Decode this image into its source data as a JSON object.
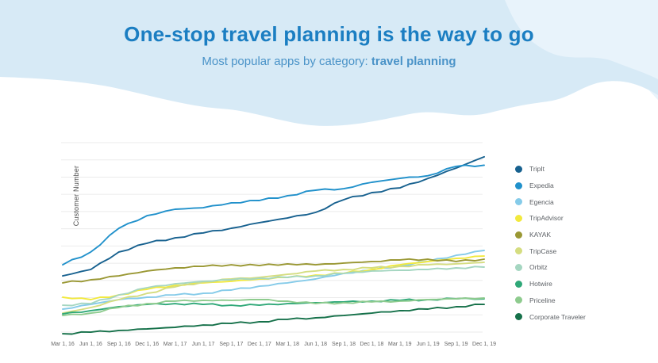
{
  "header": {
    "title": "One-stop travel planning is the way to go",
    "subtitle_prefix": "Most popular apps by category: ",
    "subtitle_highlight": "travel planning"
  },
  "colors": {
    "title_blue": "#1b7ec2",
    "subtitle_blue": "#4a93c8",
    "wave_main": "#d7eaf6",
    "wave_light": "#e8f3fb",
    "gridline": "#ebebeb",
    "axis_text": "#666666"
  },
  "chart_data": {
    "type": "line",
    "title": "",
    "xlabel": "",
    "ylabel": "Customer Number",
    "ylim": [
      0,
      100
    ],
    "y_tick_labels_shown": false,
    "grid": "horizontal",
    "legend_position": "right",
    "x_tick_labels": [
      "Mar 1, 16",
      "Jun 1, 16",
      "Sep 1, 16",
      "Dec 1, 16",
      "Mar 1, 17",
      "Jun 1, 17",
      "Sep 1, 17",
      "Dec 1, 17",
      "Mar 1, 18",
      "Jun 1, 18",
      "Sep 1, 18",
      "Dec 1, 18",
      "Mar 1, 19",
      "Jun 1, 19",
      "Sep 1, 19",
      "Dec 1, 19"
    ],
    "series": [
      {
        "name": "TripIt",
        "color": "#17618f",
        "values": [
          31.4,
          34.7,
          43.7,
          48.2,
          51.0,
          53.5,
          55.9,
          58.8,
          61.2,
          64.1,
          70.6,
          74.3,
          76.7,
          81.6,
          86.9,
          92.7
        ]
      },
      {
        "name": "Expedia",
        "color": "#2191cb",
        "values": [
          37.1,
          43.7,
          55.9,
          62.4,
          65.7,
          66.5,
          69.0,
          70.2,
          72.7,
          75.5,
          76.3,
          79.6,
          81.6,
          83.0,
          87.8,
          88.4
        ]
      },
      {
        "name": "Egencia",
        "color": "#85cbe9",
        "values": [
          14.3,
          16.7,
          19.2,
          20.4,
          21.6,
          22.4,
          24.1,
          26.1,
          27.8,
          29.8,
          32.7,
          34.3,
          36.7,
          38.8,
          42.0,
          44.5
        ]
      },
      {
        "name": "TripAdvisor",
        "color": "#f2e93d",
        "values": [
          20.4,
          19.2,
          21.6,
          24.5,
          26.5,
          27.8,
          28.6,
          29.8,
          30.6,
          31.8,
          32.7,
          34.7,
          37.1,
          38.8,
          40.4,
          41.6
        ]
      },
      {
        "name": "KAYAK",
        "color": "#9a9834",
        "values": [
          27.8,
          29.4,
          31.4,
          33.9,
          35.5,
          36.3,
          37.1,
          36.7,
          37.6,
          37.1,
          38.0,
          38.8,
          39.6,
          40.0,
          38.8,
          40.0
        ]
      },
      {
        "name": "TripCase",
        "color": "#d5dd80",
        "values": [
          12.2,
          15.1,
          19.2,
          22.4,
          25.7,
          28.2,
          29.8,
          30.6,
          32.2,
          33.9,
          34.7,
          35.5,
          36.3,
          37.1,
          37.6,
          38.4
        ]
      },
      {
        "name": "Orbitz",
        "color": "#a5d6c1",
        "values": [
          16.3,
          17.1,
          21.6,
          25.3,
          27.3,
          28.6,
          29.4,
          30.2,
          30.6,
          31.4,
          32.7,
          33.9,
          34.3,
          34.7,
          35.5,
          35.9
        ]
      },
      {
        "name": "Hotwire",
        "color": "#2fa878",
        "values": [
          11.8,
          13.5,
          15.5,
          16.7,
          17.1,
          16.7,
          16.3,
          16.3,
          17.1,
          17.6,
          18.0,
          18.4,
          18.8,
          19.2,
          19.6,
          19.6
        ]
      },
      {
        "name": "Priceline",
        "color": "#8ecb8e",
        "values": [
          11.0,
          12.2,
          15.1,
          17.1,
          18.4,
          18.8,
          18.8,
          19.2,
          18.4,
          17.1,
          17.6,
          18.0,
          18.4,
          19.2,
          19.6,
          20.0
        ]
      },
      {
        "name": "Corporate Traveler",
        "color": "#16714a",
        "values": [
          1.6,
          2.4,
          3.3,
          4.1,
          4.9,
          6.1,
          6.9,
          7.8,
          9.0,
          9.8,
          11.0,
          12.2,
          13.5,
          14.3,
          15.5,
          16.7
        ]
      }
    ]
  }
}
